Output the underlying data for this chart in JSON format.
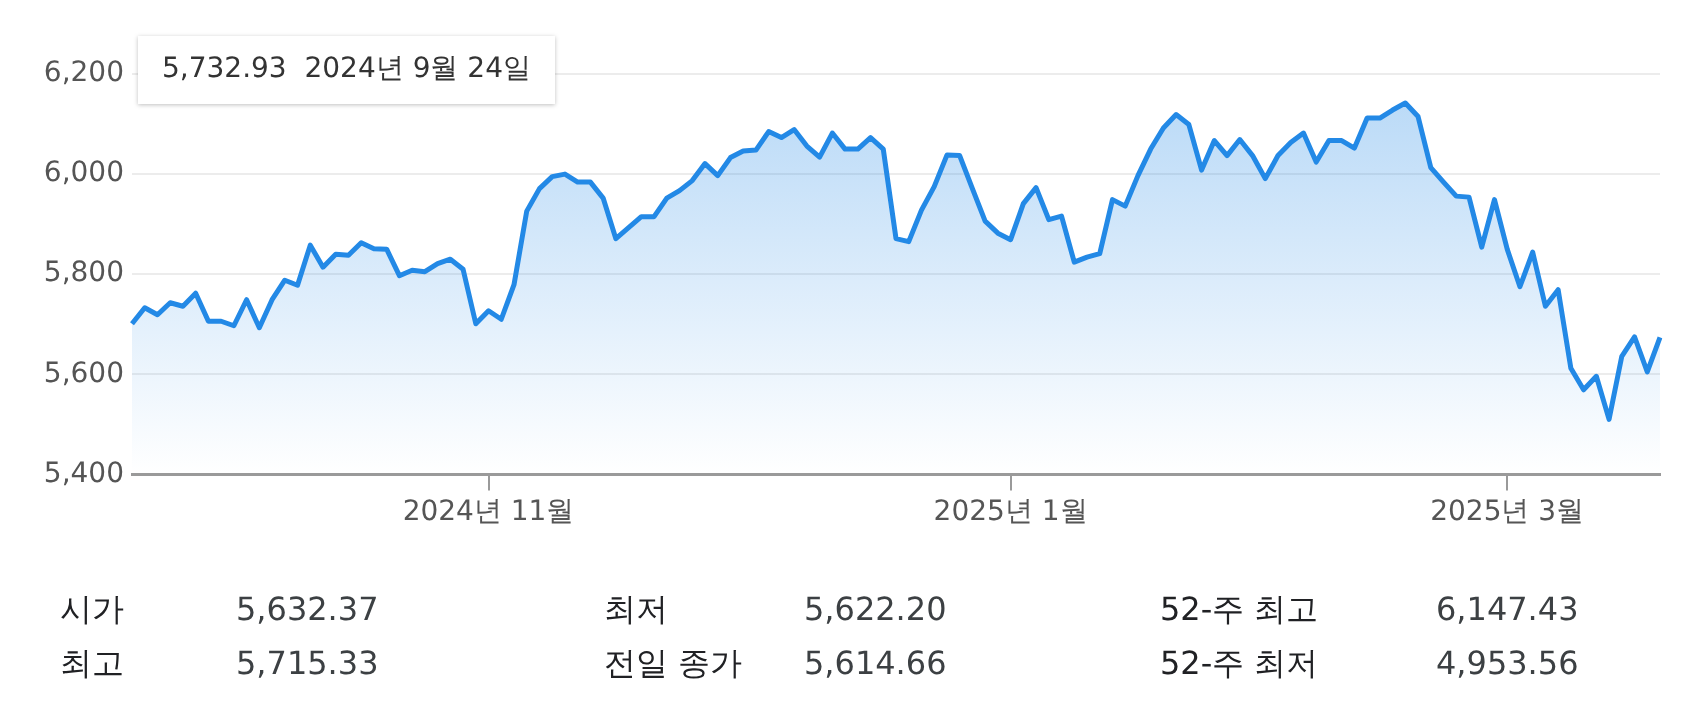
{
  "chart_data": {
    "type": "area",
    "categories": [
      null,
      null,
      null,
      null,
      null,
      null,
      null,
      null,
      null,
      null,
      null,
      null,
      null,
      null,
      null,
      null,
      null,
      null,
      null,
      null,
      null,
      null,
      null,
      null,
      null,
      null,
      null,
      null,
      "2024년 11월",
      null,
      null,
      null,
      null,
      null,
      null,
      null,
      null,
      null,
      null,
      null,
      null,
      null,
      null,
      null,
      null,
      null,
      null,
      null,
      null,
      null,
      null,
      null,
      null,
      null,
      null,
      null,
      null,
      null,
      null,
      null,
      null,
      null,
      null,
      null,
      null,
      null,
      null,
      null,
      null,
      "2025년 1월",
      null,
      null,
      null,
      null,
      null,
      null,
      null,
      null,
      null,
      null,
      null,
      null,
      null,
      null,
      null,
      null,
      null,
      null,
      null,
      null,
      null,
      null,
      null,
      null,
      null,
      null,
      null,
      null,
      null,
      null,
      null,
      null,
      null,
      null,
      null,
      null,
      null,
      null,
      "2025년 3월",
      null,
      null,
      null,
      null,
      null,
      null,
      null,
      null,
      null,
      null,
      null,
      null
    ],
    "series": [
      {
        "color": "#2389e6",
        "values": [
          5701,
          5733,
          5719,
          5743,
          5736,
          5762,
          5706,
          5706,
          5697,
          5749,
          5693,
          5749,
          5788,
          5778,
          5858,
          5814,
          5840,
          5838,
          5863,
          5851,
          5850,
          5797,
          5808,
          5805,
          5821,
          5830,
          5810,
          5701,
          5727,
          5710,
          5779,
          5926,
          5971,
          5995,
          6000,
          5984,
          5984,
          5952,
          5871,
          5893,
          5915,
          5915,
          5952,
          5967,
          5987,
          6021,
          5997,
          6033,
          6046,
          6048,
          6085,
          6073,
          6089,
          6056,
          6034,
          6082,
          6050,
          6050,
          6073,
          6050,
          5871,
          5865,
          5928,
          5975,
          6038,
          6037,
          5971,
          5906,
          5882,
          5869,
          5941,
          5973,
          5909,
          5916,
          5824,
          5834,
          5841,
          5949,
          5936,
          5997,
          6050,
          6092,
          6119,
          6099,
          6008,
          6067,
          6037,
          6069,
          6037,
          5991,
          6037,
          6063,
          6082,
          6024,
          6067,
          6067,
          6052,
          6112,
          6112,
          6128,
          6142,
          6115,
          6013,
          5984,
          5956,
          5954,
          5854,
          5949,
          5850,
          5775,
          5844,
          5736,
          5769,
          5612,
          5569,
          5596,
          5510,
          5636,
          5675,
          5605,
          5674
        ]
      }
    ],
    "ylim": [
      5400,
      6200
    ],
    "yticks": [
      {
        "value": 5400,
        "label": "5,400"
      },
      {
        "value": 5600,
        "label": "5,600"
      },
      {
        "value": 5800,
        "label": "5,800"
      },
      {
        "value": 6000,
        "label": "6,000"
      },
      {
        "value": 6200,
        "label": "6,200"
      }
    ],
    "grid": "y",
    "marker": "none",
    "annotations": [
      "5,732.93  2024년 9월 24일",
      "시가",
      "5,632.37",
      "최저",
      "5,622.20",
      "52-주 최고",
      "6,147.43",
      "최고",
      "5,715.33",
      "전일 종가",
      "5,614.66",
      "52-주 최저",
      "4,953.56"
    ]
  }
}
